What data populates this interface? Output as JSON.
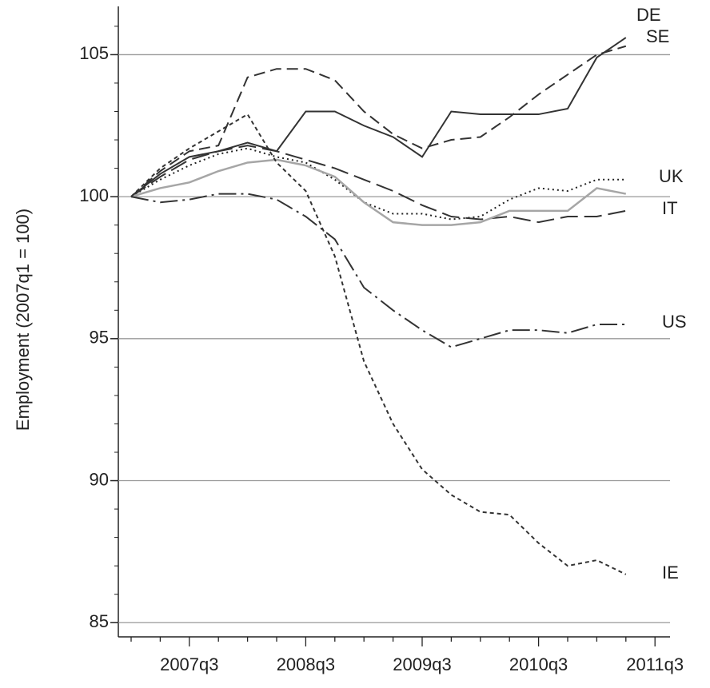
{
  "chart_data": {
    "type": "line",
    "y_label": "Employment (2007q1 = 100)",
    "categories": [
      null,
      null,
      "2007q3",
      null,
      null,
      null,
      "2008q3",
      null,
      null,
      null,
      "2009q3",
      null,
      null,
      null,
      "2010q3",
      null,
      null,
      null,
      "2011q3"
    ],
    "ylim": [
      84.5,
      106.7
    ],
    "yticks": [
      85,
      90,
      95,
      100,
      105
    ],
    "grid": true,
    "series": [
      {
        "name": "DE",
        "color": "#333333",
        "style": "solid",
        "values": [
          100,
          100.8,
          101.4,
          101.6,
          101.9,
          101.6,
          103.0,
          103.0,
          102.5,
          102.1,
          101.4,
          103.0,
          102.9,
          102.9,
          102.9,
          103.1,
          104.9,
          105.6,
          null
        ]
      },
      {
        "name": "SE",
        "color": "#333333",
        "style": "dashed",
        "values": [
          100,
          100.9,
          101.6,
          101.8,
          104.2,
          104.5,
          104.5,
          104.1,
          103.0,
          102.2,
          101.7,
          102.0,
          102.1,
          102.8,
          103.6,
          104.3,
          105.0,
          105.3,
          null
        ]
      },
      {
        "name": "UK",
        "color": "#222222",
        "style": "dotted",
        "values": [
          100,
          100.6,
          101.1,
          101.5,
          101.7,
          101.4,
          101.2,
          100.6,
          99.8,
          99.4,
          99.4,
          99.2,
          99.3,
          99.9,
          100.3,
          100.2,
          100.6,
          100.6,
          null
        ]
      },
      {
        "name": "IT",
        "color": "#333333",
        "style": "longdash",
        "values": [
          100,
          100.7,
          101.3,
          101.6,
          101.8,
          101.6,
          101.3,
          101.0,
          100.6,
          100.2,
          99.7,
          99.3,
          99.2,
          99.3,
          99.1,
          99.3,
          99.3,
          99.5,
          null
        ]
      },
      {
        "color": "#a6a6a6",
        "style": "solid",
        "values": [
          100,
          100.3,
          100.5,
          100.9,
          101.2,
          101.3,
          101.1,
          100.7,
          99.8,
          99.1,
          99.0,
          99.0,
          99.1,
          99.5,
          99.5,
          99.5,
          100.3,
          100.1,
          null
        ]
      },
      {
        "name": "US",
        "color": "#333333",
        "style": "dashdot",
        "values": [
          100,
          99.8,
          99.9,
          100.1,
          100.1,
          99.9,
          99.3,
          98.5,
          96.8,
          96.0,
          95.3,
          94.7,
          95.0,
          95.3,
          95.3,
          95.2,
          95.5,
          95.5,
          null
        ]
      },
      {
        "name": "IE",
        "color": "#333333",
        "style": "shortdash",
        "values": [
          100,
          101.0,
          101.7,
          102.3,
          102.9,
          101.2,
          100.2,
          97.9,
          94.2,
          92.0,
          90.4,
          89.5,
          88.9,
          88.8,
          87.8,
          87.0,
          87.2,
          86.7,
          null
        ]
      }
    ]
  }
}
